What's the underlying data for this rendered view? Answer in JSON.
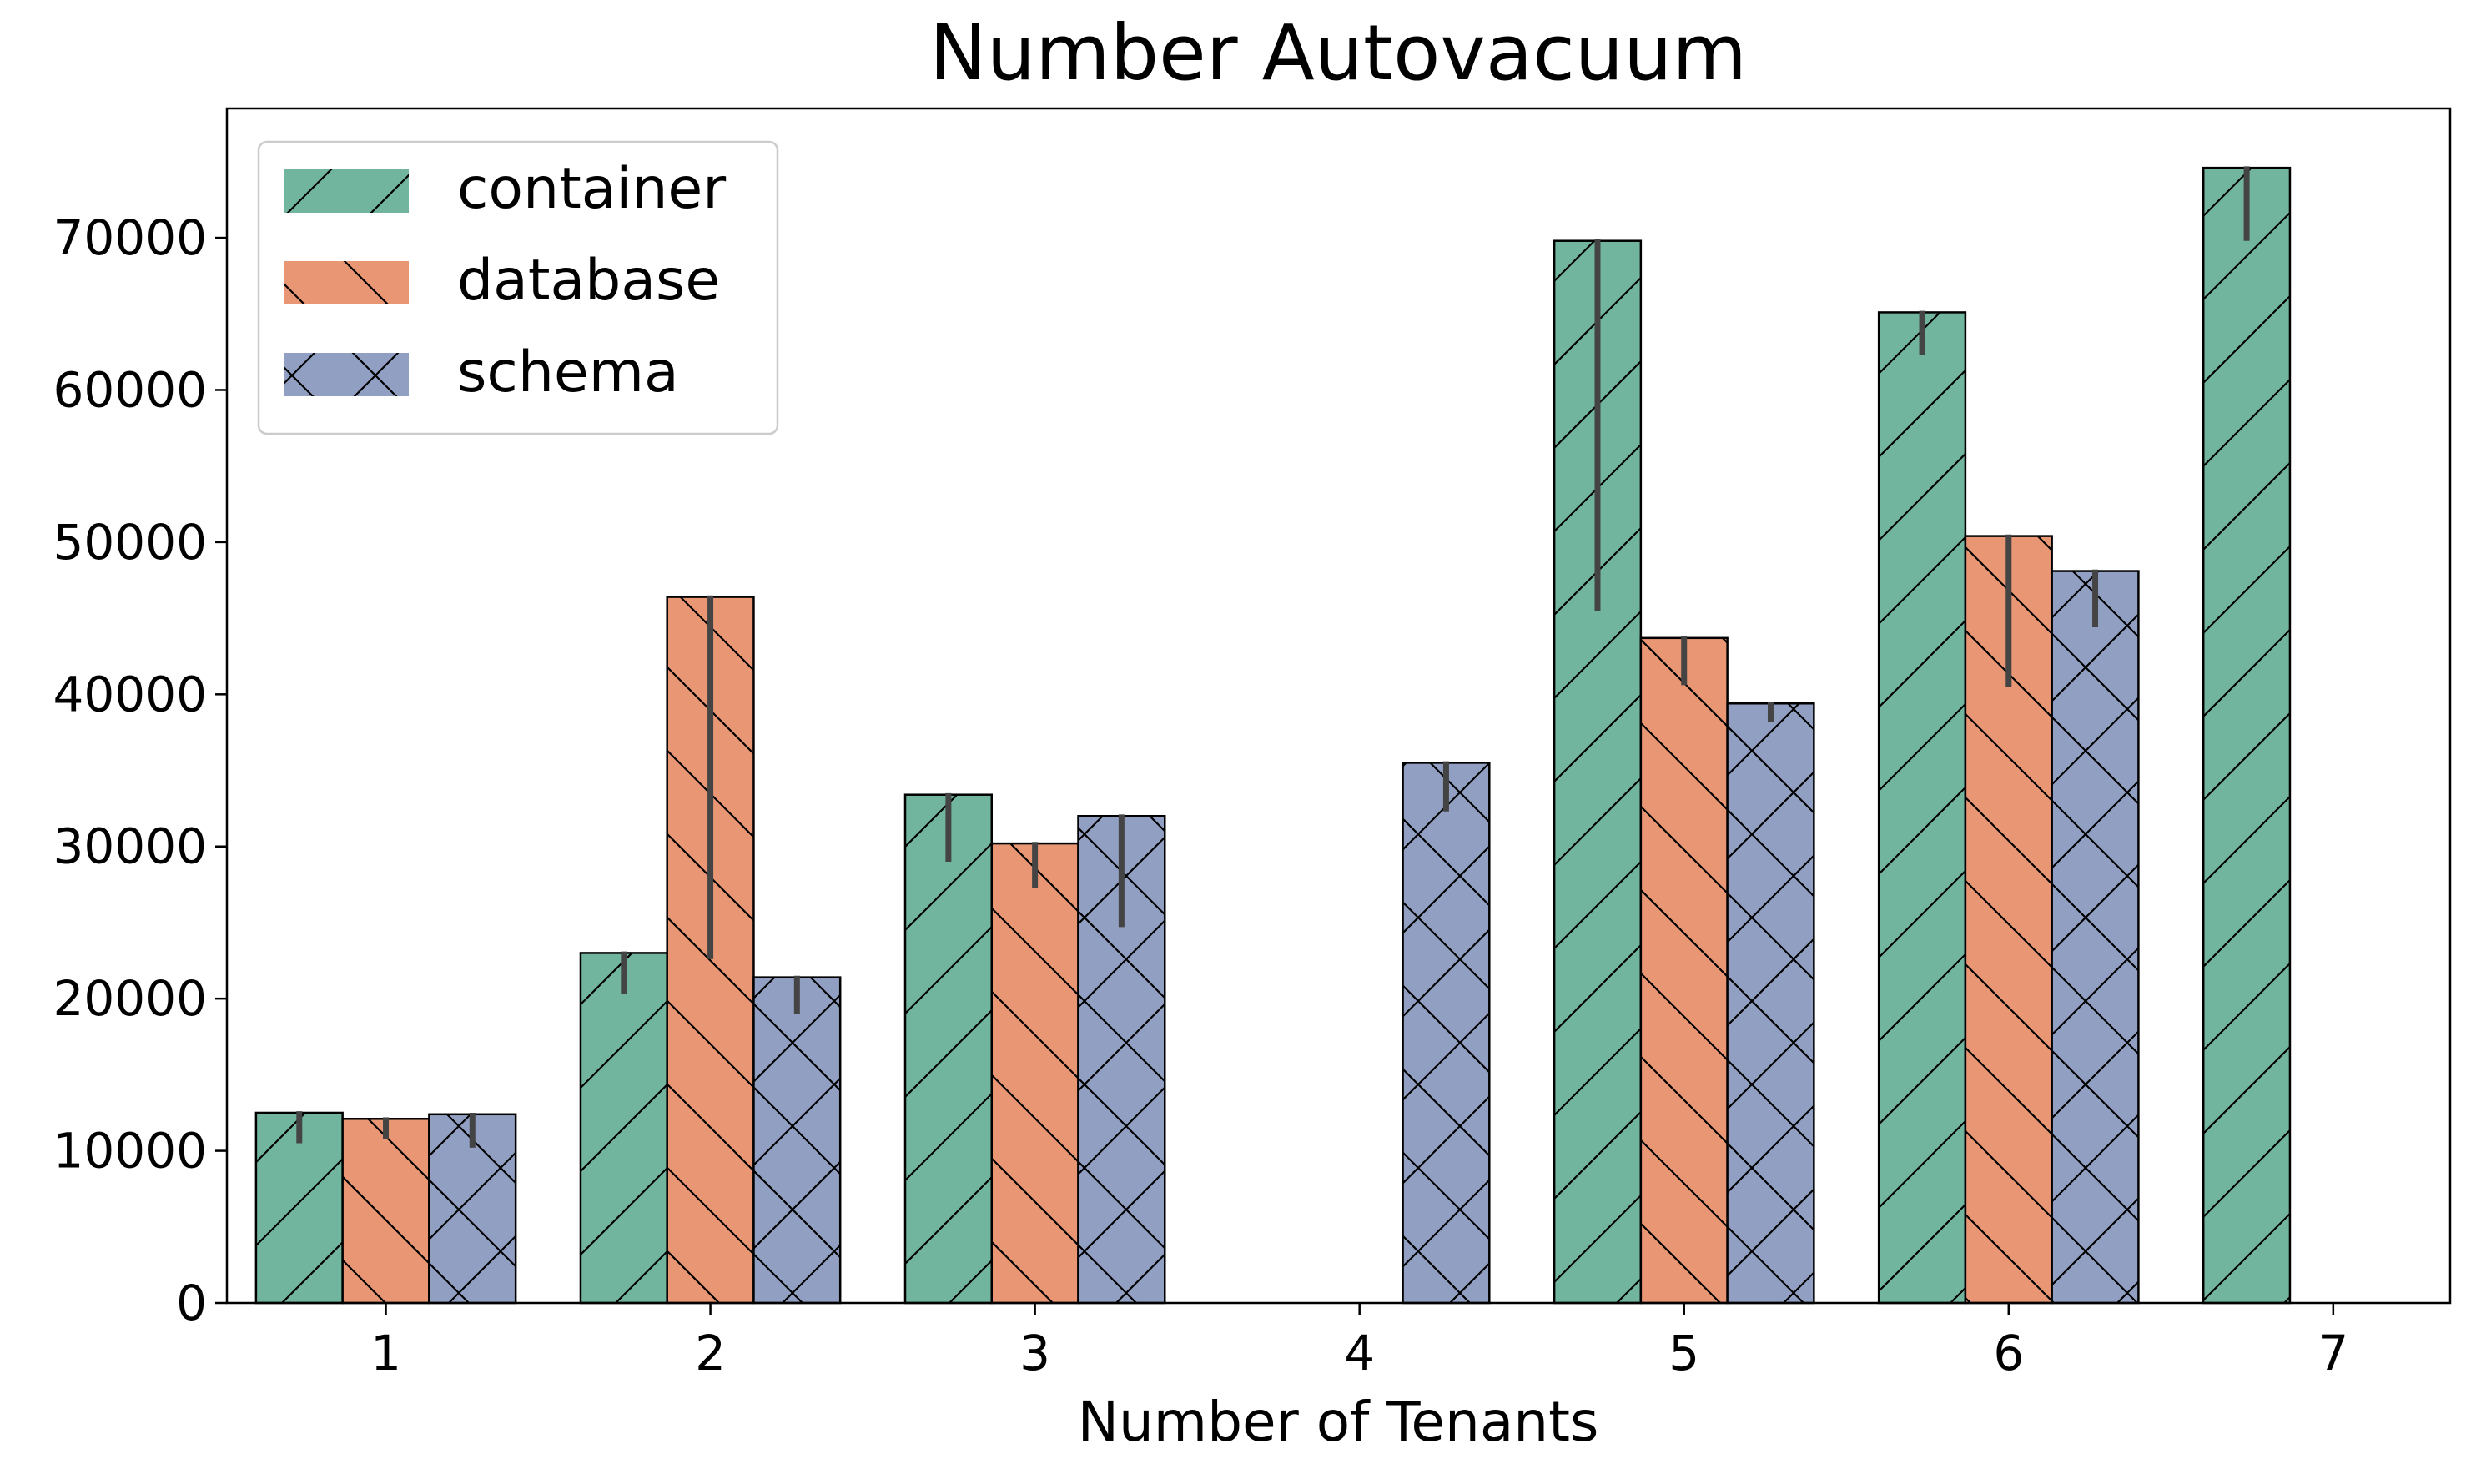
{
  "chart_data": {
    "type": "bar",
    "title": "Number Autovacuum",
    "xlabel": "Number of Tenants",
    "ylabel": "",
    "categories": [
      "1",
      "2",
      "3",
      "4",
      "5",
      "6",
      "7"
    ],
    "ylim": [
      0,
      78500
    ],
    "yticks": [
      0,
      10000,
      20000,
      30000,
      40000,
      50000,
      60000,
      70000
    ],
    "grid": false,
    "legend_position": "top-left",
    "series": [
      {
        "name": "container",
        "color": "#72b59e",
        "hatch": "forward-slash",
        "values": [
          12500,
          23000,
          33400,
          null,
          69800,
          65100,
          74600
        ],
        "error_low": [
          10500,
          20300,
          29000,
          null,
          45500,
          62300,
          69800
        ],
        "error_high": [
          12600,
          23100,
          33500,
          null,
          69900,
          65200,
          74700
        ]
      },
      {
        "name": "database",
        "color": "#e89673",
        "hatch": "back-slash",
        "values": [
          12100,
          46400,
          30200,
          null,
          43700,
          50400,
          null
        ],
        "error_low": [
          10800,
          22600,
          27300,
          null,
          40600,
          40500,
          null
        ],
        "error_high": [
          12200,
          46500,
          30300,
          null,
          43800,
          50500,
          null
        ]
      },
      {
        "name": "schema",
        "color": "#919fc3",
        "hatch": "cross",
        "values": [
          12400,
          21400,
          32000,
          35500,
          39400,
          48100,
          null
        ],
        "error_low": [
          10200,
          19000,
          24700,
          32300,
          38200,
          44400,
          null
        ],
        "error_high": [
          12500,
          21500,
          32100,
          35600,
          39500,
          48200,
          null
        ]
      }
    ]
  }
}
